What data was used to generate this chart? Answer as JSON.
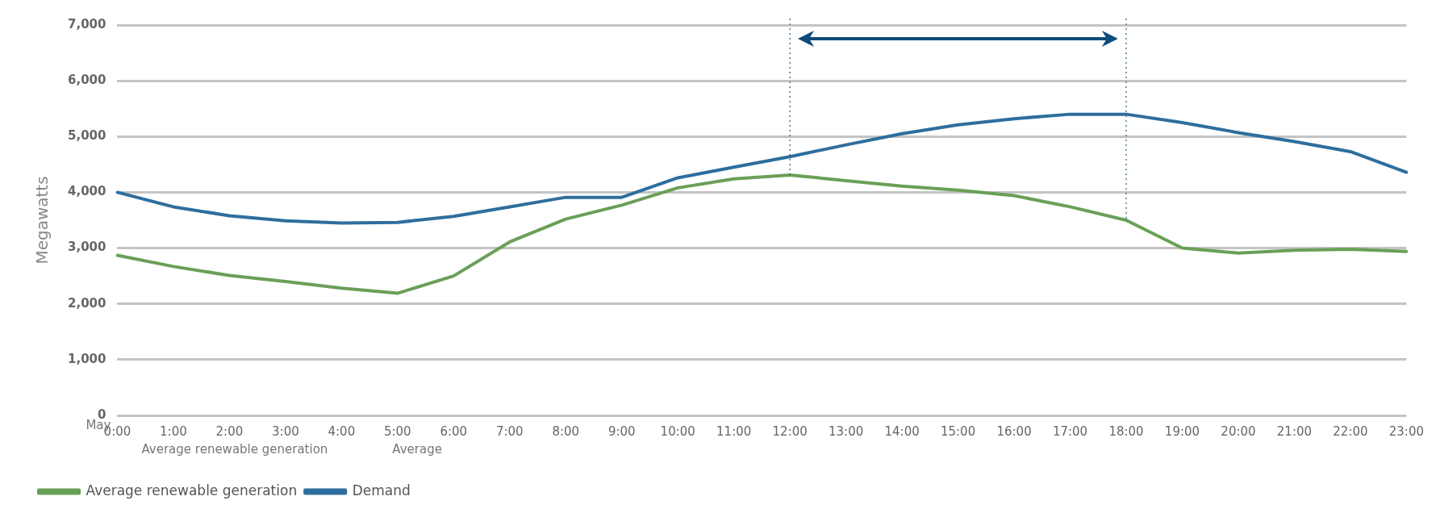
{
  "chart_data": {
    "type": "line",
    "ylabel": "Megawatts",
    "categories": [
      "0:00",
      "1:00",
      "2:00",
      "3:00",
      "4:00",
      "5:00",
      "6:00",
      "7:00",
      "8:00",
      "9:00",
      "10:00",
      "11:00",
      "12:00",
      "13:00",
      "14:00",
      "15:00",
      "16:00",
      "17:00",
      "18:00",
      "19:00",
      "20:00",
      "21:00",
      "22:00",
      "23:00"
    ],
    "series": [
      {
        "name": "Average renewable generation",
        "color": "#6a9f58",
        "values": [
          2870,
          2670,
          2510,
          2400,
          2280,
          2190,
          2500,
          3110,
          3520,
          3770,
          4080,
          4240,
          4310,
          4210,
          4110,
          4040,
          3940,
          3740,
          3500,
          3000,
          2910,
          2960,
          2980,
          2940
        ]
      },
      {
        "name": "Demand",
        "color": "#2e6e9e",
        "values": [
          4000,
          3740,
          3580,
          3490,
          3450,
          3460,
          3570,
          3740,
          3910,
          3910,
          4260,
          4450,
          4640,
          4850,
          5050,
          5210,
          5320,
          5400,
          5400,
          5250,
          5070,
          4910,
          4730,
          4360
        ]
      }
    ],
    "ylim": [
      0,
      7000
    ],
    "yticks": [
      {
        "value": 0,
        "label": "0"
      },
      {
        "value": 1000,
        "label": "1,000"
      },
      {
        "value": 2000,
        "label": "2,000"
      },
      {
        "value": 3000,
        "label": "3,000"
      },
      {
        "value": 4000,
        "label": "4,000"
      },
      {
        "value": 5000,
        "label": "5,000"
      },
      {
        "value": 6000,
        "label": "6,000"
      },
      {
        "value": 7000,
        "label": "7,000"
      }
    ],
    "grid": "y",
    "legend": "bottom",
    "marker": "none",
    "line_style": "solid",
    "ref_lines": [
      {
        "axis": "x",
        "value": "12:00",
        "color": "#1f5f8b",
        "line_style": "dotted"
      },
      {
        "axis": "x",
        "value": "18:00",
        "color": "#1f5f8b",
        "line_style": "dotted"
      }
    ],
    "annotations": [
      "May",
      "Average renewable generation",
      "Average"
    ]
  }
}
